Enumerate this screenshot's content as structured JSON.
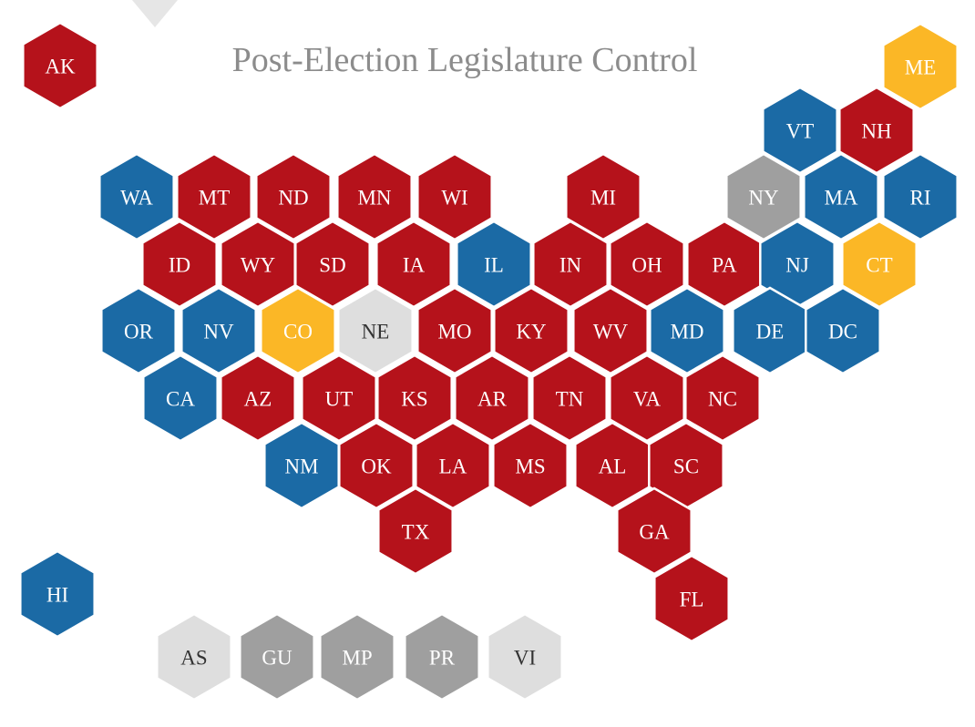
{
  "title": "Post-Election Legislature Control",
  "colors": {
    "republican": "#b5121b",
    "democratic": "#1b6aa5",
    "split": "#fbb726",
    "nonpartisan": "#dedede",
    "other": "#9f9f9f",
    "label_dark": "#ffffff",
    "label_light": "#333333"
  },
  "states": [
    {
      "abbr": "AK",
      "control": "republican"
    },
    {
      "abbr": "ME",
      "control": "split"
    },
    {
      "abbr": "VT",
      "control": "democratic"
    },
    {
      "abbr": "NH",
      "control": "republican"
    },
    {
      "abbr": "WA",
      "control": "democratic"
    },
    {
      "abbr": "MT",
      "control": "republican"
    },
    {
      "abbr": "ND",
      "control": "republican"
    },
    {
      "abbr": "MN",
      "control": "republican"
    },
    {
      "abbr": "WI",
      "control": "republican"
    },
    {
      "abbr": "MI",
      "control": "republican"
    },
    {
      "abbr": "NY",
      "control": "other"
    },
    {
      "abbr": "MA",
      "control": "democratic"
    },
    {
      "abbr": "RI",
      "control": "democratic"
    },
    {
      "abbr": "ID",
      "control": "republican"
    },
    {
      "abbr": "WY",
      "control": "republican"
    },
    {
      "abbr": "SD",
      "control": "republican"
    },
    {
      "abbr": "IA",
      "control": "republican"
    },
    {
      "abbr": "IL",
      "control": "democratic"
    },
    {
      "abbr": "IN",
      "control": "republican"
    },
    {
      "abbr": "OH",
      "control": "republican"
    },
    {
      "abbr": "PA",
      "control": "republican"
    },
    {
      "abbr": "NJ",
      "control": "democratic"
    },
    {
      "abbr": "CT",
      "control": "split"
    },
    {
      "abbr": "OR",
      "control": "democratic"
    },
    {
      "abbr": "NV",
      "control": "democratic"
    },
    {
      "abbr": "CO",
      "control": "split"
    },
    {
      "abbr": "NE",
      "control": "nonpartisan"
    },
    {
      "abbr": "MO",
      "control": "republican"
    },
    {
      "abbr": "KY",
      "control": "republican"
    },
    {
      "abbr": "WV",
      "control": "republican"
    },
    {
      "abbr": "MD",
      "control": "democratic"
    },
    {
      "abbr": "DE",
      "control": "democratic"
    },
    {
      "abbr": "DC",
      "control": "democratic"
    },
    {
      "abbr": "CA",
      "control": "democratic"
    },
    {
      "abbr": "AZ",
      "control": "republican"
    },
    {
      "abbr": "UT",
      "control": "republican"
    },
    {
      "abbr": "KS",
      "control": "republican"
    },
    {
      "abbr": "AR",
      "control": "republican"
    },
    {
      "abbr": "TN",
      "control": "republican"
    },
    {
      "abbr": "VA",
      "control": "republican"
    },
    {
      "abbr": "NC",
      "control": "republican"
    },
    {
      "abbr": "NM",
      "control": "democratic"
    },
    {
      "abbr": "OK",
      "control": "republican"
    },
    {
      "abbr": "LA",
      "control": "republican"
    },
    {
      "abbr": "MS",
      "control": "republican"
    },
    {
      "abbr": "AL",
      "control": "republican"
    },
    {
      "abbr": "SC",
      "control": "republican"
    },
    {
      "abbr": "TX",
      "control": "republican"
    },
    {
      "abbr": "GA",
      "control": "republican"
    },
    {
      "abbr": "FL",
      "control": "republican"
    },
    {
      "abbr": "HI",
      "control": "democratic"
    },
    {
      "abbr": "AS",
      "control": "nonpartisan"
    },
    {
      "abbr": "GU",
      "control": "other"
    },
    {
      "abbr": "MP",
      "control": "other"
    },
    {
      "abbr": "PR",
      "control": "other"
    },
    {
      "abbr": "VI",
      "control": "nonpartisan"
    }
  ]
}
